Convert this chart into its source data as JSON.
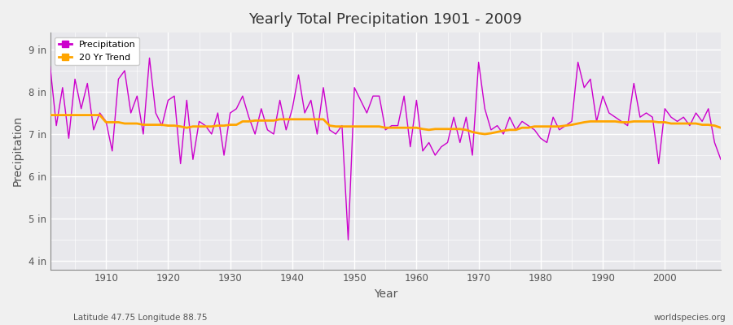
{
  "title": "Yearly Total Precipitation 1901 - 2009",
  "xlabel": "Year",
  "ylabel": "Precipitation",
  "x_label_bottom": "Latitude 47.75 Longitude 88.75",
  "x_label_right": "worldspecies.org",
  "ylim": [
    3.8,
    9.4
  ],
  "yticks": [
    4,
    5,
    6,
    7,
    8,
    9
  ],
  "ytick_labels": [
    "4 in",
    "5 in",
    "6 in",
    "7 in",
    "8 in",
    "9 in"
  ],
  "xlim": [
    1901,
    2009
  ],
  "xticks": [
    1910,
    1920,
    1930,
    1940,
    1950,
    1960,
    1970,
    1980,
    1990,
    2000
  ],
  "precip_color": "#CC00CC",
  "trend_color": "#FFA500",
  "fig_background": "#F0F0F0",
  "plot_background": "#E8E8EC",
  "grid_color": "#FFFFFF",
  "legend_labels": [
    "Precipitation",
    "20 Yr Trend"
  ],
  "years": [
    1901,
    1902,
    1903,
    1904,
    1905,
    1906,
    1907,
    1908,
    1909,
    1910,
    1911,
    1912,
    1913,
    1914,
    1915,
    1916,
    1917,
    1918,
    1919,
    1920,
    1921,
    1922,
    1923,
    1924,
    1925,
    1926,
    1927,
    1928,
    1929,
    1930,
    1931,
    1932,
    1933,
    1934,
    1935,
    1936,
    1937,
    1938,
    1939,
    1940,
    1941,
    1942,
    1943,
    1944,
    1945,
    1946,
    1947,
    1948,
    1949,
    1950,
    1951,
    1952,
    1953,
    1954,
    1955,
    1956,
    1957,
    1958,
    1959,
    1960,
    1961,
    1962,
    1963,
    1964,
    1965,
    1966,
    1967,
    1968,
    1969,
    1970,
    1971,
    1972,
    1973,
    1974,
    1975,
    1976,
    1977,
    1978,
    1979,
    1980,
    1981,
    1982,
    1983,
    1984,
    1985,
    1986,
    1987,
    1988,
    1989,
    1990,
    1991,
    1992,
    1993,
    1994,
    1995,
    1996,
    1997,
    1998,
    1999,
    2000,
    2001,
    2002,
    2003,
    2004,
    2005,
    2006,
    2007,
    2008,
    2009
  ],
  "precip": [
    8.6,
    7.2,
    8.1,
    6.9,
    8.3,
    7.6,
    8.2,
    7.1,
    7.5,
    7.3,
    6.6,
    8.3,
    8.5,
    7.5,
    7.9,
    7.0,
    8.8,
    7.5,
    7.2,
    7.8,
    7.9,
    6.3,
    7.8,
    6.4,
    7.3,
    7.2,
    7.0,
    7.5,
    6.5,
    7.5,
    7.6,
    7.9,
    7.4,
    7.0,
    7.6,
    7.1,
    7.0,
    7.8,
    7.1,
    7.6,
    8.4,
    7.5,
    7.8,
    7.0,
    8.1,
    7.1,
    7.0,
    7.2,
    4.5,
    8.1,
    7.8,
    7.5,
    7.9,
    7.9,
    7.1,
    7.2,
    7.2,
    7.9,
    6.7,
    7.8,
    6.6,
    6.8,
    6.5,
    6.7,
    6.8,
    7.4,
    6.8,
    7.4,
    6.5,
    8.7,
    7.6,
    7.1,
    7.2,
    7.0,
    7.4,
    7.1,
    7.3,
    7.2,
    7.1,
    6.9,
    6.8,
    7.4,
    7.1,
    7.2,
    7.3,
    8.7,
    8.1,
    8.3,
    7.3,
    7.9,
    7.5,
    7.4,
    7.3,
    7.2,
    8.2,
    7.4,
    7.5,
    7.4,
    6.3,
    7.6,
    7.4,
    7.3,
    7.4,
    7.2,
    7.5,
    7.3,
    7.6,
    6.8,
    6.4
  ],
  "trend": [
    7.45,
    7.45,
    7.45,
    7.45,
    7.45,
    7.45,
    7.45,
    7.45,
    7.45,
    7.28,
    7.28,
    7.28,
    7.25,
    7.25,
    7.25,
    7.22,
    7.22,
    7.22,
    7.22,
    7.2,
    7.2,
    7.18,
    7.15,
    7.18,
    7.18,
    7.18,
    7.18,
    7.2,
    7.2,
    7.22,
    7.22,
    7.3,
    7.3,
    7.32,
    7.32,
    7.32,
    7.32,
    7.35,
    7.35,
    7.35,
    7.35,
    7.35,
    7.35,
    7.35,
    7.35,
    7.2,
    7.18,
    7.18,
    7.18,
    7.18,
    7.18,
    7.18,
    7.18,
    7.18,
    7.15,
    7.15,
    7.15,
    7.15,
    7.15,
    7.15,
    7.12,
    7.1,
    7.12,
    7.12,
    7.12,
    7.12,
    7.12,
    7.1,
    7.05,
    7.02,
    7.0,
    7.02,
    7.05,
    7.08,
    7.1,
    7.1,
    7.15,
    7.15,
    7.18,
    7.18,
    7.18,
    7.18,
    7.18,
    7.2,
    7.22,
    7.25,
    7.28,
    7.3,
    7.3,
    7.3,
    7.3,
    7.3,
    7.28,
    7.28,
    7.3,
    7.3,
    7.3,
    7.3,
    7.28,
    7.28,
    7.25,
    7.25,
    7.25,
    7.25,
    7.25,
    7.22,
    7.22,
    7.2,
    7.15
  ]
}
